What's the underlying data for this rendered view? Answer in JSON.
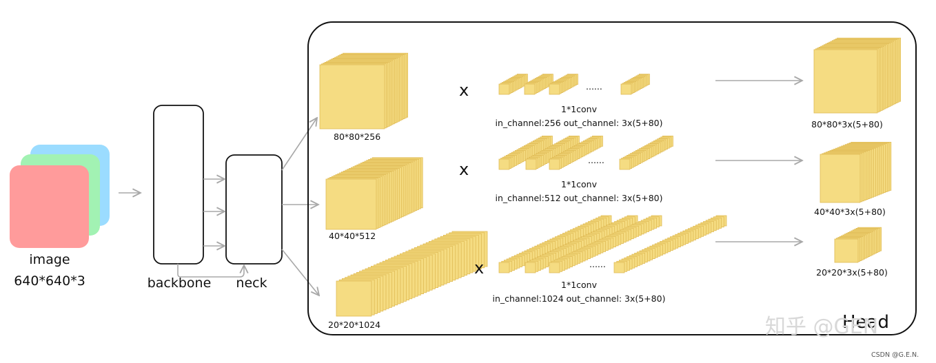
{
  "input": {
    "label": "image",
    "dims": "640*640*3",
    "colors": [
      "#9bdcff",
      "#a2f2b3",
      "#ff9b9b"
    ]
  },
  "backbone": {
    "label": "backbone"
  },
  "neck": {
    "label": "neck"
  },
  "head": {
    "label": "Head"
  },
  "multiply": "x",
  "dots": "......",
  "branches": [
    {
      "input_size": "80*80*256",
      "conv_name": "1*1conv",
      "conv_params": "in_channel:256 out_channel: 3x(5+80)",
      "output_size": "80*80*3x(5+80)"
    },
    {
      "input_size": "40*40*512",
      "conv_name": "1*1conv",
      "conv_params": "in_channel:512 out_channel: 3x(5+80)",
      "output_size": "40*40*3x(5+80)"
    },
    {
      "input_size": "20*20*1024",
      "conv_name": "1*1conv",
      "conv_params": "in_channel:1024 out_channel: 3x(5+80)",
      "output_size": "20*20*3x(5+80)"
    }
  ],
  "watermark": "知乎 @GEN",
  "credit": "CSDN @G.E.N.",
  "colors": {
    "cube_face": "#f5dc82",
    "cube_edge": "#e0bb55",
    "arrow": "#a8a8a8",
    "stroke": "#111111"
  }
}
